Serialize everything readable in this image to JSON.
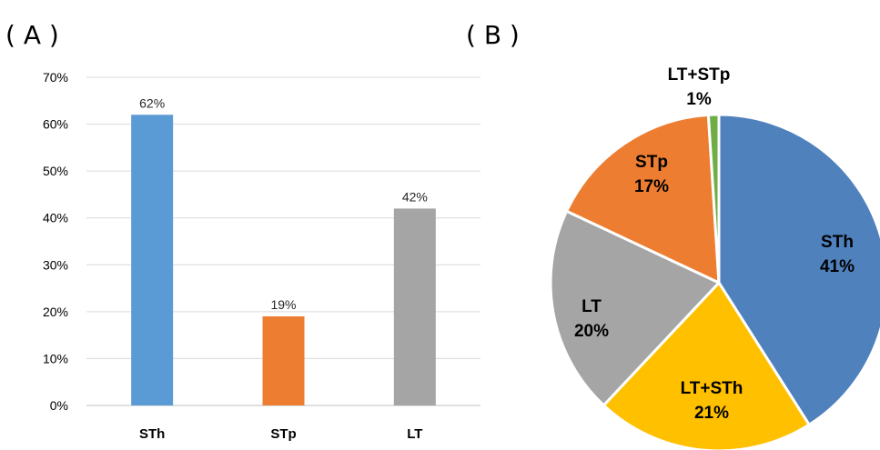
{
  "panels": {
    "a_label": "( A )",
    "b_label": "( B )"
  },
  "chart_data": [
    {
      "type": "bar",
      "categories": [
        "STh",
        "STp",
        "LT"
      ],
      "values": [
        62,
        19,
        42
      ],
      "value_labels": [
        "62%",
        "19%",
        "42%"
      ],
      "colors": [
        "#5B9BD5",
        "#ED7D31",
        "#A5A5A5"
      ],
      "ylim": [
        0,
        70
      ],
      "yticks": [
        "0%",
        "10%",
        "20%",
        "30%",
        "40%",
        "50%",
        "60%",
        "70%"
      ],
      "grid": true,
      "title": "",
      "xlabel": "",
      "ylabel": ""
    },
    {
      "type": "pie",
      "slices": [
        {
          "label": "STh",
          "percent_label": "41%",
          "value": 41,
          "color": "#4F81BD"
        },
        {
          "label": "LT+STh",
          "percent_label": "21%",
          "value": 21,
          "color": "#FFC000"
        },
        {
          "label": "LT",
          "percent_label": "20%",
          "value": 20,
          "color": "#A5A5A5"
        },
        {
          "label": "STp",
          "percent_label": "17%",
          "value": 17,
          "color": "#ED7D31"
        },
        {
          "label": "LT+STp",
          "percent_label": "1%",
          "value": 1,
          "color": "#70AD47"
        }
      ]
    }
  ]
}
